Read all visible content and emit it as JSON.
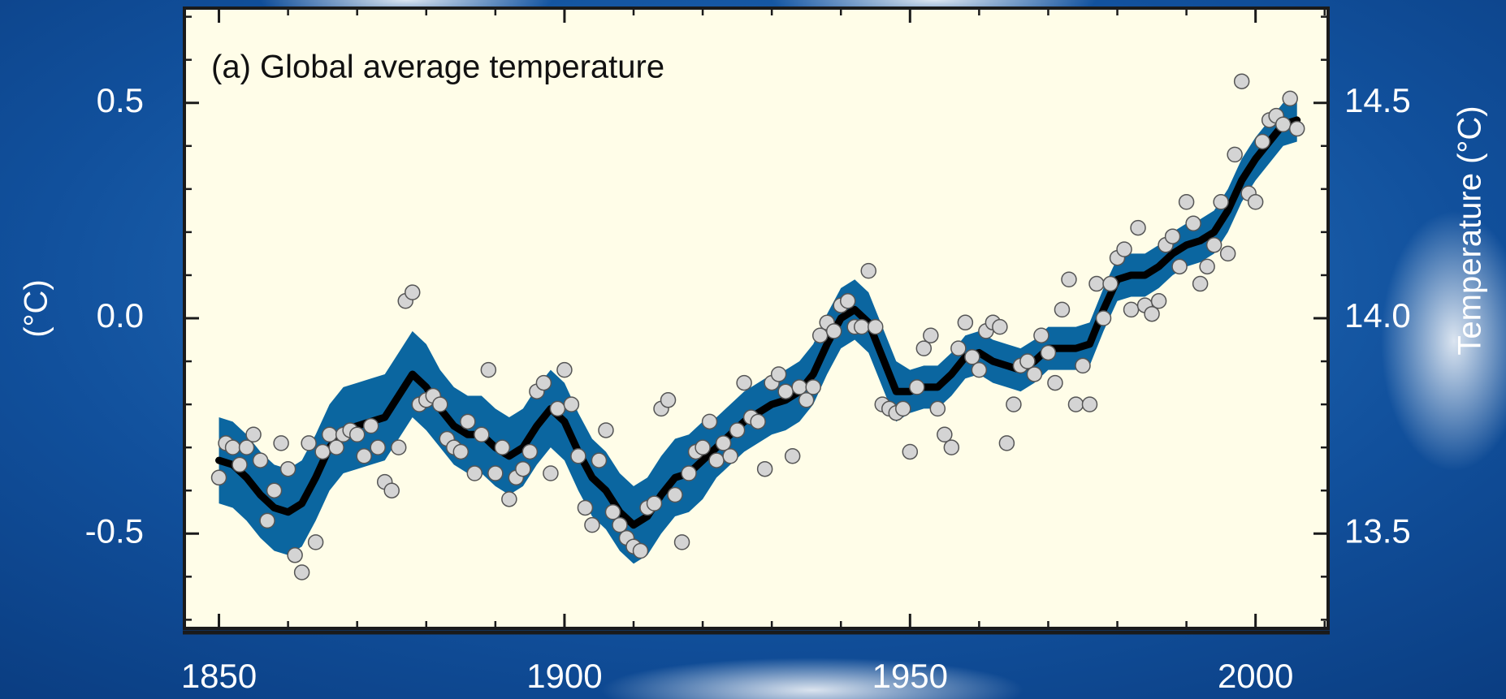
{
  "chart_data": {
    "type": "line",
    "title": "(a) Global average temperature",
    "y_label": "(°C)",
    "y2_label": "Temperature (°C)",
    "xlim": [
      1845,
      2010.5
    ],
    "ylim": [
      -0.72,
      0.72
    ],
    "y2lim": [
      13.28,
      14.72
    ],
    "xticks": [
      1850,
      1900,
      1950,
      2000
    ],
    "xminorticks": [
      1850,
      1860,
      1870,
      1880,
      1890,
      1900,
      1910,
      1920,
      1930,
      1940,
      1950,
      1960,
      1970,
      1980,
      1990,
      2000,
      2010
    ],
    "yticks": [
      -0.5,
      {
        "value": 0,
        "label": "0.0"
      },
      0.5
    ],
    "yminorticks": [
      -0.7,
      -0.6,
      -0.5,
      -0.4,
      -0.3,
      -0.2,
      -0.1,
      0,
      0.1,
      0.2,
      0.3,
      0.4,
      0.5,
      0.6,
      0.7
    ],
    "y2ticks": [
      13.5,
      {
        "value": 14,
        "label": "14.0"
      },
      14.5
    ],
    "background": "#fffde8",
    "series": [
      {
        "type": "scatter",
        "color": "#d4d4d4",
        "edge_color": "#555555",
        "x": [
          1850,
          1851,
          1852,
          1853,
          1854,
          1855,
          1856,
          1857,
          1858,
          1859,
          1860,
          1861,
          1862,
          1863,
          1864,
          1865,
          1866,
          1867,
          1868,
          1869,
          1870,
          1871,
          1872,
          1873,
          1874,
          1875,
          1876,
          1877,
          1878,
          1879,
          1880,
          1881,
          1882,
          1883,
          1884,
          1885,
          1886,
          1887,
          1888,
          1889,
          1890,
          1891,
          1892,
          1893,
          1894,
          1895,
          1896,
          1897,
          1898,
          1899,
          1900,
          1901,
          1902,
          1903,
          1904,
          1905,
          1906,
          1907,
          1908,
          1909,
          1910,
          1911,
          1912,
          1913,
          1914,
          1915,
          1916,
          1917,
          1918,
          1919,
          1920,
          1921,
          1922,
          1923,
          1924,
          1925,
          1926,
          1927,
          1928,
          1929,
          1930,
          1931,
          1932,
          1933,
          1934,
          1935,
          1936,
          1937,
          1938,
          1939,
          1940,
          1941,
          1942,
          1943,
          1944,
          1945,
          1946,
          1947,
          1948,
          1949,
          1950,
          1951,
          1952,
          1953,
          1954,
          1955,
          1956,
          1957,
          1958,
          1959,
          1960,
          1961,
          1962,
          1963,
          1964,
          1965,
          1966,
          1967,
          1968,
          1969,
          1970,
          1971,
          1972,
          1973,
          1974,
          1975,
          1976,
          1977,
          1978,
          1979,
          1980,
          1981,
          1982,
          1983,
          1984,
          1985,
          1986,
          1987,
          1988,
          1989,
          1990,
          1991,
          1992,
          1993,
          1994,
          1995,
          1996,
          1997,
          1998,
          1999,
          2000,
          2001,
          2002,
          2003,
          2004,
          2005,
          2006
        ],
        "values": [
          -0.37,
          -0.29,
          -0.3,
          -0.34,
          -0.3,
          -0.27,
          -0.33,
          -0.47,
          -0.4,
          -0.29,
          -0.35,
          -0.55,
          -0.59,
          -0.29,
          -0.52,
          -0.31,
          -0.27,
          -0.3,
          -0.27,
          -0.26,
          -0.27,
          -0.32,
          -0.25,
          -0.3,
          -0.38,
          -0.4,
          -0.3,
          0.04,
          0.06,
          -0.2,
          -0.19,
          -0.18,
          -0.2,
          -0.28,
          -0.3,
          -0.31,
          -0.24,
          -0.36,
          -0.27,
          -0.12,
          -0.36,
          -0.3,
          -0.42,
          -0.37,
          -0.35,
          -0.31,
          -0.17,
          -0.15,
          -0.36,
          -0.21,
          -0.12,
          -0.2,
          -0.32,
          -0.44,
          -0.48,
          -0.33,
          -0.26,
          -0.45,
          -0.48,
          -0.51,
          -0.53,
          -0.54,
          -0.44,
          -0.43,
          -0.21,
          -0.19,
          -0.41,
          -0.52,
          -0.36,
          -0.31,
          -0.3,
          -0.24,
          -0.33,
          -0.29,
          -0.32,
          -0.26,
          -0.15,
          -0.23,
          -0.24,
          -0.35,
          -0.15,
          -0.13,
          -0.17,
          -0.32,
          -0.16,
          -0.19,
          -0.16,
          -0.04,
          -0.01,
          -0.03,
          0.03,
          0.04,
          -0.02,
          -0.02,
          0.11,
          -0.02,
          -0.2,
          -0.21,
          -0.22,
          -0.21,
          -0.31,
          -0.16,
          -0.07,
          -0.04,
          -0.21,
          -0.27,
          -0.3,
          -0.07,
          -0.01,
          -0.09,
          -0.12,
          -0.03,
          -0.01,
          -0.02,
          -0.29,
          -0.2,
          -0.11,
          -0.1,
          -0.13,
          -0.04,
          -0.08,
          -0.15,
          0.02,
          0.09,
          -0.2,
          -0.11,
          -0.2,
          0.08,
          0.0,
          0.08,
          0.14,
          0.16,
          0.02,
          0.21,
          0.03,
          0.01,
          0.04,
          0.17,
          0.19,
          0.12,
          0.27,
          0.22,
          0.08,
          0.12,
          0.17,
          0.27,
          0.15,
          0.38,
          0.55,
          0.29,
          0.27,
          0.41,
          0.46,
          0.47,
          0.45,
          0.51,
          0.44
        ]
      },
      {
        "type": "line",
        "color": "#000000",
        "band_color": "#0b66a0",
        "x": [
          1850,
          1852,
          1854,
          1856,
          1858,
          1860,
          1862,
          1864,
          1866,
          1868,
          1870,
          1872,
          1874,
          1876,
          1878,
          1880,
          1882,
          1884,
          1886,
          1888,
          1890,
          1892,
          1894,
          1896,
          1898,
          1900,
          1902,
          1904,
          1906,
          1908,
          1910,
          1912,
          1914,
          1916,
          1918,
          1920,
          1922,
          1924,
          1926,
          1928,
          1930,
          1932,
          1934,
          1936,
          1938,
          1940,
          1942,
          1944,
          1946,
          1948,
          1950,
          1952,
          1954,
          1956,
          1958,
          1960,
          1962,
          1964,
          1966,
          1968,
          1970,
          1972,
          1974,
          1976,
          1978,
          1980,
          1982,
          1984,
          1986,
          1988,
          1990,
          1992,
          1994,
          1996,
          1998,
          2000,
          2002,
          2004,
          2006
        ],
        "values": [
          -0.33,
          -0.34,
          -0.37,
          -0.41,
          -0.44,
          -0.45,
          -0.43,
          -0.37,
          -0.3,
          -0.26,
          -0.25,
          -0.24,
          -0.23,
          -0.18,
          -0.13,
          -0.16,
          -0.21,
          -0.25,
          -0.27,
          -0.27,
          -0.3,
          -0.32,
          -0.3,
          -0.25,
          -0.21,
          -0.24,
          -0.31,
          -0.37,
          -0.4,
          -0.45,
          -0.48,
          -0.46,
          -0.41,
          -0.37,
          -0.36,
          -0.33,
          -0.3,
          -0.27,
          -0.24,
          -0.22,
          -0.2,
          -0.19,
          -0.17,
          -0.13,
          -0.06,
          0.0,
          0.02,
          -0.01,
          -0.09,
          -0.17,
          -0.17,
          -0.16,
          -0.16,
          -0.13,
          -0.09,
          -0.08,
          -0.1,
          -0.11,
          -0.12,
          -0.1,
          -0.07,
          -0.07,
          -0.07,
          -0.06,
          0.02,
          0.09,
          0.1,
          0.1,
          0.12,
          0.15,
          0.17,
          0.18,
          0.2,
          0.25,
          0.32,
          0.37,
          0.41,
          0.45,
          0.46
        ],
        "lower": [
          -0.43,
          -0.44,
          -0.47,
          -0.51,
          -0.54,
          -0.55,
          -0.53,
          -0.47,
          -0.4,
          -0.36,
          -0.35,
          -0.34,
          -0.33,
          -0.28,
          -0.23,
          -0.26,
          -0.3,
          -0.34,
          -0.36,
          -0.36,
          -0.39,
          -0.41,
          -0.39,
          -0.34,
          -0.3,
          -0.33,
          -0.4,
          -0.46,
          -0.49,
          -0.54,
          -0.57,
          -0.55,
          -0.5,
          -0.46,
          -0.45,
          -0.42,
          -0.37,
          -0.34,
          -0.31,
          -0.29,
          -0.27,
          -0.26,
          -0.24,
          -0.2,
          -0.13,
          -0.07,
          -0.05,
          -0.08,
          -0.16,
          -0.24,
          -0.22,
          -0.21,
          -0.21,
          -0.18,
          -0.14,
          -0.13,
          -0.15,
          -0.16,
          -0.17,
          -0.15,
          -0.12,
          -0.12,
          -0.12,
          -0.11,
          -0.03,
          0.04,
          0.05,
          0.05,
          0.07,
          0.1,
          0.12,
          0.13,
          0.15,
          0.2,
          0.27,
          0.32,
          0.36,
          0.4,
          0.41
        ],
        "upper": [
          -0.23,
          -0.24,
          -0.27,
          -0.31,
          -0.34,
          -0.35,
          -0.33,
          -0.27,
          -0.2,
          -0.16,
          -0.15,
          -0.14,
          -0.13,
          -0.08,
          -0.03,
          -0.06,
          -0.12,
          -0.16,
          -0.18,
          -0.18,
          -0.21,
          -0.23,
          -0.21,
          -0.16,
          -0.12,
          -0.15,
          -0.22,
          -0.28,
          -0.31,
          -0.36,
          -0.39,
          -0.37,
          -0.32,
          -0.28,
          -0.27,
          -0.24,
          -0.23,
          -0.2,
          -0.17,
          -0.15,
          -0.13,
          -0.12,
          -0.1,
          -0.06,
          0.01,
          0.07,
          0.09,
          0.06,
          -0.02,
          -0.1,
          -0.12,
          -0.11,
          -0.11,
          -0.08,
          -0.04,
          -0.03,
          -0.05,
          -0.06,
          -0.07,
          -0.05,
          -0.02,
          -0.02,
          -0.02,
          -0.01,
          0.07,
          0.14,
          0.15,
          0.15,
          0.17,
          0.2,
          0.22,
          0.23,
          0.25,
          0.3,
          0.37,
          0.42,
          0.46,
          0.5,
          0.51
        ]
      }
    ]
  }
}
